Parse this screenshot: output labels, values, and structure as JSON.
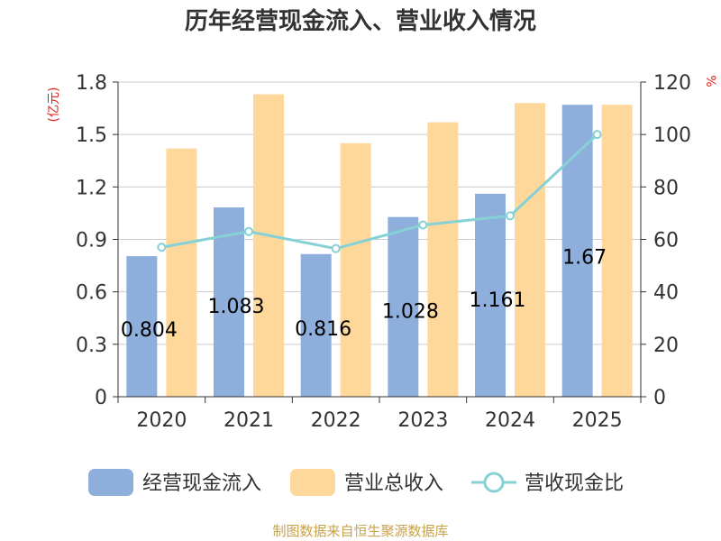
{
  "source": "制图数据来自恒生聚源数据库",
  "chart_data": {
    "type": "bar",
    "title": "历年经营现金流入、营业收入情况",
    "categories": [
      "2020",
      "2021",
      "2022",
      "2023",
      "2024",
      "2025"
    ],
    "y_left": {
      "label": "(亿元)",
      "ylim": [
        0,
        1.8
      ],
      "ticks": [
        "0",
        "0.3",
        "0.6",
        "0.9",
        "1.2",
        "1.5",
        "1.8"
      ]
    },
    "y_right": {
      "label": "%",
      "ylim": [
        0,
        120
      ],
      "ticks": [
        "0",
        "20",
        "40",
        "60",
        "80",
        "100",
        "120"
      ]
    },
    "series": [
      {
        "name": "经营现金流入",
        "type": "bar",
        "axis": "left",
        "color": "#8eaedc",
        "values": [
          0.804,
          1.083,
          0.816,
          1.028,
          1.161,
          1.67
        ],
        "labels": [
          "0.804",
          "1.083",
          "0.816",
          "1.028",
          "1.161",
          "1.67"
        ]
      },
      {
        "name": "营业总收入",
        "type": "bar",
        "axis": "left",
        "color": "#fdd89a",
        "values": [
          1.42,
          1.73,
          1.45,
          1.57,
          1.68,
          1.67
        ]
      },
      {
        "name": "营收现金比",
        "type": "line",
        "axis": "right",
        "color": "#85d1d6",
        "values": [
          57,
          63,
          56.5,
          65.5,
          69,
          100
        ]
      }
    ],
    "grid": true,
    "legend": "bottom"
  }
}
